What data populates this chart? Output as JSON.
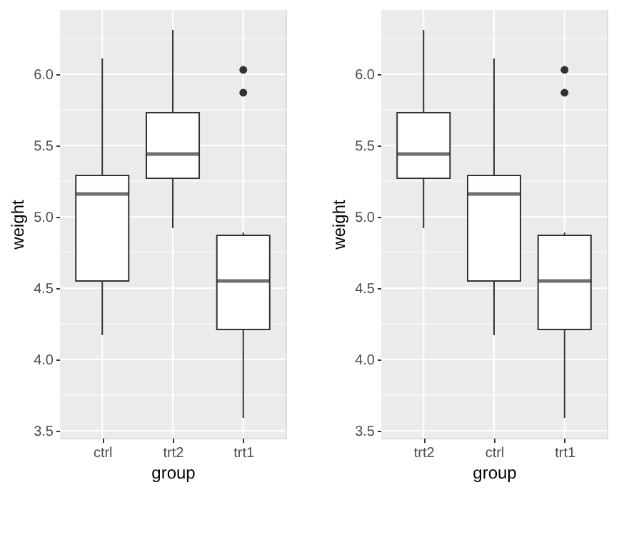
{
  "chart_data": [
    {
      "type": "box",
      "xlabel": "group",
      "ylabel": "weight",
      "categories": [
        "ctrl",
        "trt2",
        "trt1"
      ],
      "boxes": [
        {
          "low": 4.17,
          "q1": 4.55,
          "median": 5.16,
          "q3": 5.29,
          "high": 6.11
        },
        {
          "low": 4.92,
          "q1": 5.27,
          "median": 5.44,
          "q3": 5.73,
          "high": 6.31
        },
        {
          "low": 3.59,
          "q1": 4.21,
          "median": 4.55,
          "q3": 4.87,
          "high": 4.89,
          "outliers": [
            5.87,
            6.03
          ]
        }
      ],
      "ylim": [
        3.45,
        6.45
      ],
      "yticks": [
        {
          "value": 3.5,
          "label": "3.5"
        },
        {
          "value": 3.75,
          "label": null
        },
        {
          "value": 4,
          "label": "4.0"
        },
        {
          "value": 4.25,
          "label": null
        },
        {
          "value": 4.5,
          "label": "4.5"
        },
        {
          "value": 4.75,
          "label": null
        },
        {
          "value": 5,
          "label": "5.0"
        },
        {
          "value": 5.25,
          "label": null
        },
        {
          "value": 5.5,
          "label": "5.5"
        },
        {
          "value": 5.75,
          "label": null
        },
        {
          "value": 6,
          "label": "6.0"
        },
        {
          "value": 6.25,
          "label": null
        }
      ],
      "grid": true
    },
    {
      "type": "box",
      "xlabel": "group",
      "ylabel": "weight",
      "categories": [
        "trt2",
        "ctrl",
        "trt1"
      ],
      "boxes": [
        {
          "low": 4.92,
          "q1": 5.27,
          "median": 5.44,
          "q3": 5.73,
          "high": 6.31
        },
        {
          "low": 4.17,
          "q1": 4.55,
          "median": 5.16,
          "q3": 5.29,
          "high": 6.11
        },
        {
          "low": 3.59,
          "q1": 4.21,
          "median": 4.55,
          "q3": 4.87,
          "high": 4.89,
          "outliers": [
            5.87,
            6.03
          ]
        }
      ],
      "ylim": [
        3.45,
        6.45
      ],
      "yticks": [
        {
          "value": 3.5,
          "label": "3.5"
        },
        {
          "value": 3.75,
          "label": null
        },
        {
          "value": 4,
          "label": "4.0"
        },
        {
          "value": 4.25,
          "label": null
        },
        {
          "value": 4.5,
          "label": "4.5"
        },
        {
          "value": 4.75,
          "label": null
        },
        {
          "value": 5,
          "label": "5.0"
        },
        {
          "value": 5.25,
          "label": null
        },
        {
          "value": 5.5,
          "label": "5.5"
        },
        {
          "value": 5.75,
          "label": null
        },
        {
          "value": 6,
          "label": "6.0"
        },
        {
          "value": 6.25,
          "label": null
        }
      ],
      "grid": true
    }
  ]
}
